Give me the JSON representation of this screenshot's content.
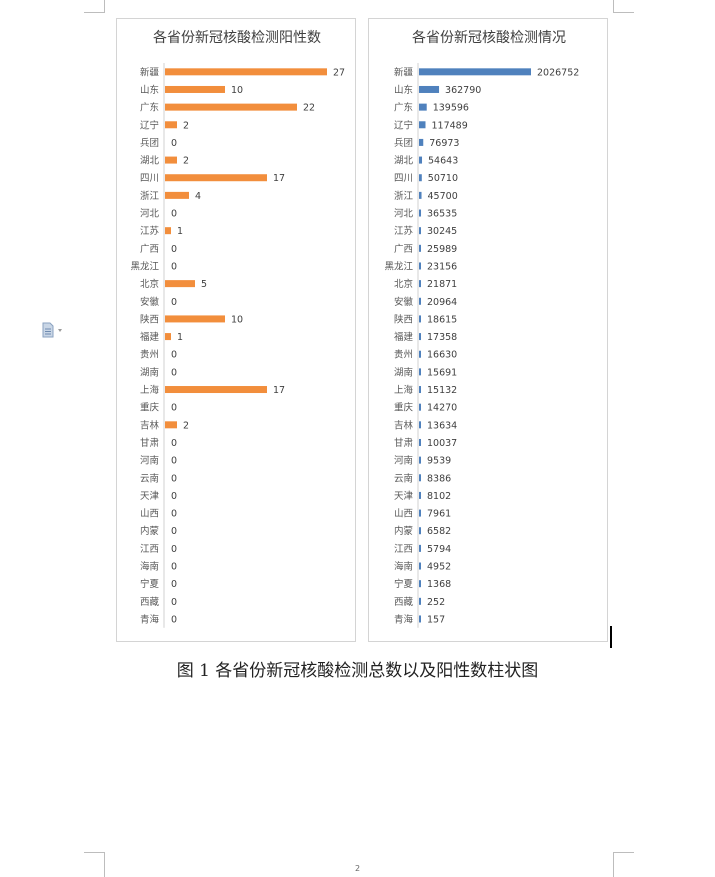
{
  "caption": "图 1 各省份新冠核酸检测总数以及阳性数柱状图",
  "page_number": "2",
  "icons": {
    "side": "document-icon"
  },
  "colors": {
    "positive_bar": "#F28E3C",
    "tests_bar": "#4F81BD"
  },
  "chart_data": [
    {
      "type": "bar",
      "orientation": "horizontal",
      "title": "各省份新冠核酸检测阳性数",
      "categories": [
        "新疆",
        "山东",
        "广东",
        "辽宁",
        "兵团",
        "湖北",
        "四川",
        "浙江",
        "河北",
        "江苏",
        "广西",
        "黑龙江",
        "北京",
        "安徽",
        "陕西",
        "福建",
        "贵州",
        "湖南",
        "上海",
        "重庆",
        "吉林",
        "甘肃",
        "河南",
        "云南",
        "天津",
        "山西",
        "内蒙",
        "江西",
        "海南",
        "宁夏",
        "西藏",
        "青海"
      ],
      "values": [
        27,
        10,
        22,
        2,
        0,
        2,
        17,
        4,
        0,
        1,
        0,
        0,
        5,
        0,
        10,
        1,
        0,
        0,
        17,
        0,
        2,
        0,
        0,
        0,
        0,
        0,
        0,
        0,
        0,
        0,
        0,
        0
      ],
      "xlim": [
        0,
        27
      ],
      "data_labels": true,
      "grid": false,
      "legend": false
    },
    {
      "type": "bar",
      "orientation": "horizontal",
      "title": "各省份新冠核酸检测情况",
      "categories": [
        "新疆",
        "山东",
        "广东",
        "辽宁",
        "兵团",
        "湖北",
        "四川",
        "浙江",
        "河北",
        "江苏",
        "广西",
        "黑龙江",
        "北京",
        "安徽",
        "陕西",
        "福建",
        "贵州",
        "湖南",
        "上海",
        "重庆",
        "吉林",
        "甘肃",
        "河南",
        "云南",
        "天津",
        "山西",
        "内蒙",
        "江西",
        "海南",
        "宁夏",
        "西藏",
        "青海"
      ],
      "values": [
        2026752,
        362790,
        139596,
        117489,
        76973,
        54643,
        50710,
        45700,
        36535,
        30245,
        25989,
        23156,
        21871,
        20964,
        18615,
        17358,
        16630,
        15691,
        15132,
        14270,
        13634,
        10037,
        9539,
        8386,
        8102,
        7961,
        6582,
        5794,
        4952,
        1368,
        252,
        157
      ],
      "xlim": [
        0,
        2026752
      ],
      "data_labels": true,
      "grid": false,
      "legend": false
    }
  ]
}
